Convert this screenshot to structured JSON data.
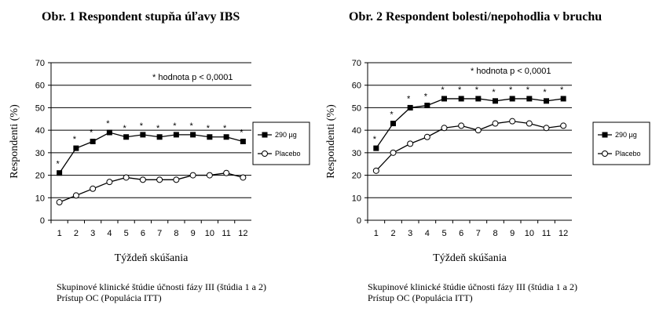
{
  "chart_data": [
    {
      "type": "line",
      "title": "Obr. 1 Respondent stupňa úľavy IBS",
      "xlabel": "Týždeň skúšania",
      "ylabel": "Respondenti (%)",
      "ylim": [
        0,
        70
      ],
      "yticks": [
        "0",
        "10",
        "20",
        "30",
        "40",
        "50",
        "60",
        "70"
      ],
      "categories": [
        "1",
        "2",
        "3",
        "4",
        "5",
        "6",
        "7",
        "8",
        "9",
        "10",
        "11",
        "12"
      ],
      "grid": "horizontal",
      "annotation": "* hodnota p < 0,0001",
      "significance_marker": "*",
      "legend_position": "right",
      "series": [
        {
          "name": "290 µg",
          "marker": "filled-square",
          "values": [
            21,
            32,
            35,
            39,
            37,
            38,
            37,
            38,
            38,
            37,
            37,
            35
          ]
        },
        {
          "name": "Placebo",
          "marker": "open-circle",
          "values": [
            8,
            11,
            14,
            17,
            19,
            18,
            18,
            18,
            20,
            20,
            21,
            19
          ]
        }
      ],
      "footer": [
        "Skupinové klinické štúdie účnosti fázy III (štúdia 1 a 2)",
        "Prístup OC (Populácia ITT)"
      ]
    },
    {
      "type": "line",
      "title": "Obr. 2 Respondent bolesti/nepohodlia v bruchu",
      "xlabel": "Týždeň skúšania",
      "ylabel": "Respondenti (%)",
      "ylim": [
        0,
        70
      ],
      "yticks": [
        "0",
        "10",
        "20",
        "30",
        "40",
        "50",
        "60",
        "70"
      ],
      "categories": [
        "1",
        "2",
        "3",
        "4",
        "5",
        "6",
        "7",
        "8",
        "9",
        "10",
        "11",
        "12"
      ],
      "grid": "horizontal",
      "annotation": "* hodnota p < 0,0001",
      "significance_marker": "*",
      "legend_position": "right",
      "series": [
        {
          "name": "290 µg",
          "marker": "filled-square",
          "values": [
            32,
            43,
            50,
            51,
            54,
            54,
            54,
            53,
            54,
            54,
            53,
            54
          ]
        },
        {
          "name": "Placebo",
          "marker": "open-circle",
          "values": [
            22,
            30,
            34,
            37,
            41,
            42,
            40,
            43,
            44,
            43,
            41,
            42
          ]
        }
      ],
      "footer": [
        "Skupinové klinické štúdie účnosti fázy III (štúdia 1 a 2)",
        "Prístup OC (Populácia ITT)"
      ]
    }
  ]
}
